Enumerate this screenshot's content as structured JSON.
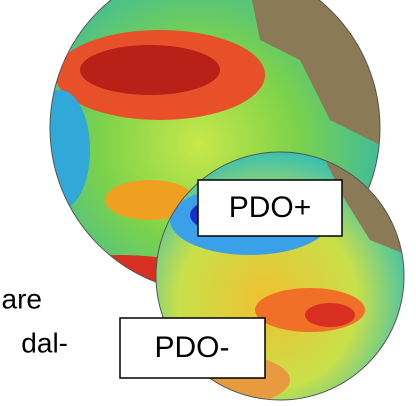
{
  "labels": {
    "pdo_positive": "PDO+",
    "pdo_negative": "PDO-"
  },
  "text_fragments": [
    "are",
    "dal-"
  ]
}
